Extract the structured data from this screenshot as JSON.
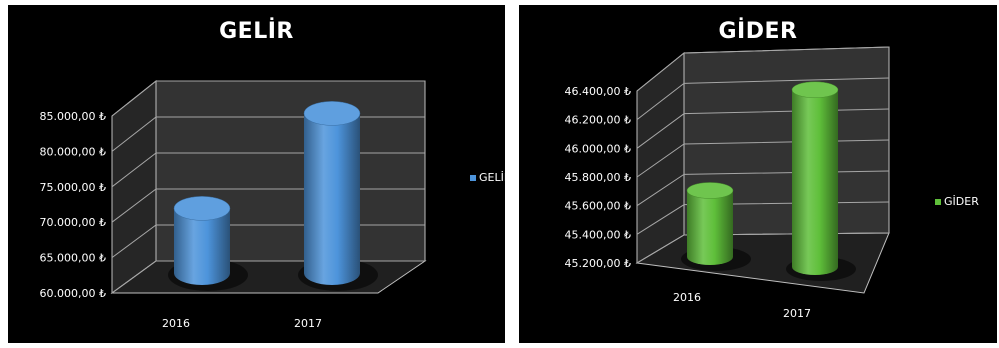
{
  "currency_symbol": "₺",
  "chart_data": [
    {
      "type": "bar",
      "title": "GELİR",
      "categories": [
        "2016",
        "2017"
      ],
      "series": [
        {
          "name": "GELİR",
          "values": [
            68500,
            81000
          ],
          "color": "#4d94db"
        }
      ],
      "ylim": [
        60000,
        85000
      ],
      "yticks": [
        60000,
        65000,
        70000,
        75000,
        80000,
        85000
      ],
      "ytick_labels": [
        "60.000,00 ₺",
        "65.000,00 ₺",
        "70.000,00 ₺",
        "75.000,00 ₺",
        "80.000,00 ₺",
        "85.000,00 ₺"
      ],
      "legend": "right",
      "grid": true,
      "bar_shape": "cylinder"
    },
    {
      "type": "bar",
      "title": "GİDER",
      "categories": [
        "2016",
        "2017"
      ],
      "series": [
        {
          "name": "GİDER",
          "values": [
            45580,
            46180
          ],
          "color": "#5fbf3a"
        }
      ],
      "ylim": [
        45200,
        46400
      ],
      "yticks": [
        45200,
        45400,
        45600,
        45800,
        46000,
        46200,
        46400
      ],
      "ytick_labels": [
        "45.200,00 ₺",
        "45.400,00 ₺",
        "45.600,00 ₺",
        "45.800,00 ₺",
        "46.000,00 ₺",
        "46.200,00 ₺",
        "46.400,00 ₺"
      ],
      "legend": "right",
      "grid": true,
      "bar_shape": "cylinder"
    }
  ]
}
